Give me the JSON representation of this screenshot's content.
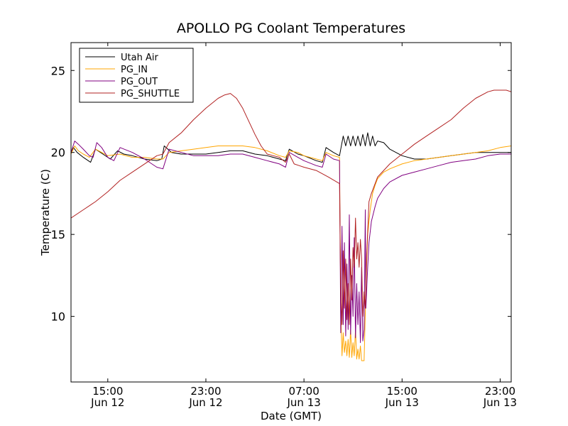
{
  "chart_data": {
    "type": "line",
    "title": "APOLLO PG Coolant Temperatures",
    "xlabel": "Date (GMT)",
    "ylabel": "Temperature (C)",
    "x_unit": "hours since Jun 12 00:00 GMT",
    "xlim": [
      12.0,
      47.9
    ],
    "ylim": [
      6.0,
      26.7
    ],
    "yticks": [
      10,
      15,
      20,
      25
    ],
    "xticks": [
      {
        "x": 15,
        "time": "15:00",
        "date": "Jun 12"
      },
      {
        "x": 23,
        "time": "23:00",
        "date": "Jun 12"
      },
      {
        "x": 31,
        "time": "07:00",
        "date": "Jun 13"
      },
      {
        "x": 39,
        "time": "15:00",
        "date": "Jun 13"
      },
      {
        "x": 47,
        "time": "23:00",
        "date": "Jun 13"
      }
    ],
    "legend_position": "top-left",
    "series": [
      {
        "name": "Utah Air",
        "color": "#000000",
        "x": [
          12.0,
          12.2,
          12.5,
          13.0,
          13.6,
          14.0,
          14.6,
          15.2,
          15.8,
          16.3,
          17.0,
          18.0,
          19.0,
          19.4,
          19.6,
          20.2,
          21.0,
          22.0,
          23.0,
          24.0,
          25.0,
          26.0,
          27.0,
          28.0,
          29.0,
          29.5,
          29.8,
          30.5,
          31.0,
          32.0,
          32.5,
          32.8,
          33.4,
          33.9,
          34.2,
          34.4,
          34.6,
          34.8,
          35.0,
          35.2,
          35.4,
          35.6,
          35.8,
          36.0,
          36.2,
          36.4,
          36.6,
          36.8,
          37.0,
          37.5,
          38.0,
          39.0,
          40.0,
          41.0,
          42.0,
          43.0,
          44.0,
          45.0,
          46.0,
          47.0,
          47.9
        ],
        "y": [
          20.0,
          20.3,
          20.0,
          19.7,
          19.4,
          20.2,
          19.9,
          19.6,
          20.1,
          19.9,
          19.8,
          19.6,
          19.5,
          19.6,
          20.4,
          20.0,
          19.9,
          19.9,
          19.9,
          20.0,
          20.1,
          20.1,
          19.9,
          19.8,
          19.6,
          19.5,
          20.2,
          19.9,
          19.8,
          19.5,
          19.4,
          20.3,
          20.0,
          19.8,
          21.0,
          20.4,
          21.0,
          20.4,
          21.0,
          20.4,
          21.0,
          20.4,
          21.1,
          20.4,
          21.2,
          20.4,
          21.0,
          20.4,
          20.7,
          20.6,
          20.2,
          19.8,
          19.6,
          19.6,
          19.7,
          19.8,
          19.9,
          20.0,
          20.0,
          20.0,
          20.0
        ]
      },
      {
        "name": "PG_IN",
        "color": "#ffa500",
        "x": [
          12.0,
          12.3,
          12.6,
          13.0,
          13.5,
          14.0,
          14.5,
          15.0,
          16.0,
          17.0,
          18.0,
          19.0,
          19.5,
          20.0,
          21.0,
          22.0,
          23.0,
          24.0,
          25.0,
          26.0,
          27.0,
          28.0,
          29.0,
          29.5,
          29.8,
          30.5,
          31.0,
          32.0,
          32.5,
          32.8,
          33.4,
          33.9,
          34.0,
          34.1,
          34.2,
          34.3,
          34.4,
          34.5,
          34.6,
          34.7,
          34.8,
          34.9,
          35.0,
          35.1,
          35.2,
          35.3,
          35.4,
          35.5,
          35.6,
          35.7,
          35.8,
          35.9,
          36.0,
          36.1,
          36.2,
          36.4,
          36.6,
          36.8,
          37.0,
          37.5,
          38.0,
          39.0,
          40.0,
          41.0,
          42.0,
          43.0,
          44.0,
          45.0,
          46.0,
          47.0,
          47.9
        ],
        "y": [
          19.9,
          20.4,
          20.1,
          19.9,
          19.7,
          20.2,
          20.0,
          19.8,
          19.9,
          19.7,
          19.7,
          19.6,
          19.6,
          20.0,
          20.1,
          20.2,
          20.3,
          20.4,
          20.4,
          20.4,
          20.3,
          20.1,
          19.8,
          19.7,
          20.1,
          20.0,
          19.8,
          19.6,
          19.5,
          20.0,
          19.8,
          19.7,
          10.5,
          7.6,
          9.0,
          7.8,
          8.5,
          7.6,
          8.6,
          7.5,
          9.2,
          7.5,
          8.4,
          7.6,
          9.2,
          7.4,
          8.0,
          7.4,
          8.2,
          7.3,
          7.3,
          7.3,
          10.2,
          13.0,
          15.0,
          16.5,
          17.5,
          18.0,
          18.4,
          18.8,
          19.0,
          19.3,
          19.5,
          19.6,
          19.7,
          19.8,
          19.9,
          20.0,
          20.1,
          20.3,
          20.4
        ]
      },
      {
        "name": "PG_OUT",
        "color": "#800080",
        "x": [
          12.0,
          12.3,
          12.6,
          13.0,
          13.5,
          13.8,
          14.1,
          14.5,
          15.0,
          15.5,
          16.0,
          17.0,
          18.0,
          19.0,
          19.5,
          20.0,
          21.0,
          22.0,
          23.0,
          24.0,
          25.0,
          26.0,
          27.0,
          28.0,
          29.0,
          29.5,
          29.8,
          30.5,
          31.0,
          32.0,
          32.5,
          32.8,
          33.4,
          33.9,
          34.0,
          34.1,
          34.2,
          34.3,
          34.4,
          34.5,
          34.6,
          34.7,
          34.8,
          34.9,
          35.0,
          35.1,
          35.2,
          35.3,
          35.4,
          35.5,
          35.6,
          35.7,
          35.8,
          35.9,
          36.0,
          36.05,
          36.2,
          36.3,
          36.5,
          36.8,
          37.0,
          37.5,
          38.0,
          39.0,
          40.0,
          41.0,
          42.0,
          43.0,
          44.0,
          45.0,
          46.0,
          47.0,
          47.9
        ],
        "y": [
          20.0,
          20.7,
          20.5,
          20.2,
          19.8,
          19.7,
          20.6,
          20.3,
          19.7,
          19.5,
          20.3,
          20.0,
          19.6,
          19.1,
          19.0,
          20.2,
          20.0,
          19.8,
          19.8,
          19.8,
          19.9,
          19.9,
          19.7,
          19.5,
          19.3,
          19.1,
          20.0,
          19.7,
          19.5,
          19.2,
          19.1,
          19.9,
          19.6,
          19.5,
          9.0,
          15.5,
          9.5,
          14.5,
          8.8,
          13.2,
          9.2,
          16.2,
          8.9,
          12.5,
          10.0,
          14.8,
          8.7,
          12.0,
          9.5,
          11.5,
          8.4,
          13.0,
          8.5,
          9.2,
          16.5,
          10.5,
          13.0,
          14.5,
          15.8,
          16.7,
          17.2,
          17.8,
          18.2,
          18.6,
          18.8,
          19.0,
          19.2,
          19.4,
          19.5,
          19.6,
          19.8,
          19.9,
          19.9
        ]
      },
      {
        "name": "PG_SHUTTLE",
        "color": "#b22222",
        "x": [
          12.0,
          13.0,
          14.0,
          15.0,
          16.0,
          17.0,
          18.0,
          19.0,
          19.5,
          20.0,
          21.0,
          22.0,
          23.0,
          24.0,
          24.5,
          25.0,
          25.5,
          26.0,
          26.5,
          27.0,
          27.5,
          28.0,
          28.5,
          29.0,
          29.5,
          29.8,
          30.2,
          30.6,
          31.0,
          32.0,
          33.0,
          33.9,
          34.0,
          34.1,
          34.2,
          34.3,
          34.4,
          34.5,
          34.6,
          34.7,
          34.8,
          34.9,
          35.0,
          35.1,
          35.2,
          35.3,
          35.4,
          35.5,
          35.6,
          35.7,
          35.8,
          35.9,
          36.0,
          36.1,
          36.3,
          36.5,
          37.0,
          38.0,
          39.0,
          40.0,
          41.0,
          42.0,
          43.0,
          44.0,
          45.0,
          46.0,
          46.5,
          47.0,
          47.5,
          47.9
        ],
        "y": [
          16.0,
          16.5,
          17.0,
          17.6,
          18.3,
          18.8,
          19.3,
          19.8,
          19.9,
          20.6,
          21.2,
          22.0,
          22.7,
          23.3,
          23.5,
          23.6,
          23.3,
          22.7,
          21.9,
          21.1,
          20.4,
          19.9,
          19.8,
          19.7,
          19.4,
          19.9,
          19.3,
          19.2,
          19.1,
          18.9,
          18.5,
          18.1,
          11.5,
          9.5,
          14.0,
          10.5,
          13.5,
          9.8,
          12.0,
          9.5,
          13.5,
          11.0,
          14.2,
          13.0,
          16.0,
          13.5,
          14.5,
          13.0,
          14.7,
          13.5,
          10.0,
          11.5,
          10.5,
          13.5,
          17.0,
          17.5,
          18.5,
          19.3,
          19.9,
          20.5,
          21.0,
          21.5,
          22.0,
          22.7,
          23.3,
          23.7,
          23.8,
          23.8,
          23.8,
          23.7
        ]
      }
    ]
  }
}
